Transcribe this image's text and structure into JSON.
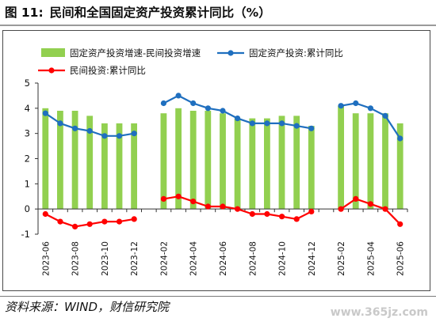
{
  "figure": {
    "number": "图 11:",
    "title": "民间和全国固定资产投资累计同比（%）",
    "source": "资料来源：WIND，财信研究院",
    "watermark": "www.365jz.com"
  },
  "chart_data": {
    "type": "bar",
    "title": "民间和全国固定资产投资累计同比（%）",
    "ylim": [
      -1,
      5
    ],
    "yticks": [
      -1,
      0,
      1,
      2,
      3,
      4,
      5
    ],
    "grid": false,
    "legend_position": "top",
    "categories": [
      "2023-06",
      "2023-07",
      "2023-08",
      "2023-09",
      "2023-10",
      "2023-11",
      "2023-12",
      "2024-01",
      "2024-02",
      "2024-03",
      "2024-04",
      "2024-05",
      "2024-06",
      "2024-07",
      "2024-08",
      "2024-09",
      "2024-10",
      "2024-11",
      "2024-12",
      "2025-01",
      "2025-02",
      "2025-03",
      "2025-04",
      "2025-05",
      "2025-06"
    ],
    "x_tick_labels": [
      "2023-06",
      "2023-08",
      "2023-10",
      "2023-12",
      "2024-02",
      "2024-04",
      "2024-06",
      "2024-08",
      "2024-10",
      "2024-12",
      "2025-02",
      "2025-04",
      "2025-06"
    ],
    "series": [
      {
        "name": "固定资产投资增速-民间投资增速",
        "type": "bar",
        "color": "#92d050",
        "values": [
          4.0,
          3.9,
          3.9,
          3.7,
          3.4,
          3.4,
          3.4,
          null,
          3.8,
          4.0,
          3.9,
          3.9,
          3.8,
          3.6,
          3.6,
          3.6,
          3.7,
          3.7,
          3.3,
          null,
          4.1,
          3.8,
          3.8,
          3.8,
          3.4
        ]
      },
      {
        "name": "固定资产投资:累计同比",
        "type": "line",
        "color": "#1f6fbf",
        "values": [
          3.8,
          3.4,
          3.2,
          3.1,
          2.9,
          2.9,
          3.0,
          null,
          4.2,
          4.5,
          4.2,
          4.0,
          3.9,
          3.6,
          3.4,
          3.4,
          3.4,
          3.3,
          3.2,
          null,
          4.1,
          4.2,
          4.0,
          3.7,
          2.8
        ]
      },
      {
        "name": "民间投资:累计同比",
        "type": "line",
        "color": "#ff0000",
        "values": [
          -0.2,
          -0.5,
          -0.7,
          -0.6,
          -0.5,
          -0.5,
          -0.4,
          null,
          0.4,
          0.5,
          0.3,
          0.1,
          0.1,
          0.0,
          -0.2,
          -0.2,
          -0.3,
          -0.4,
          -0.1,
          null,
          0.0,
          0.4,
          0.2,
          0.0,
          -0.6
        ]
      }
    ]
  }
}
